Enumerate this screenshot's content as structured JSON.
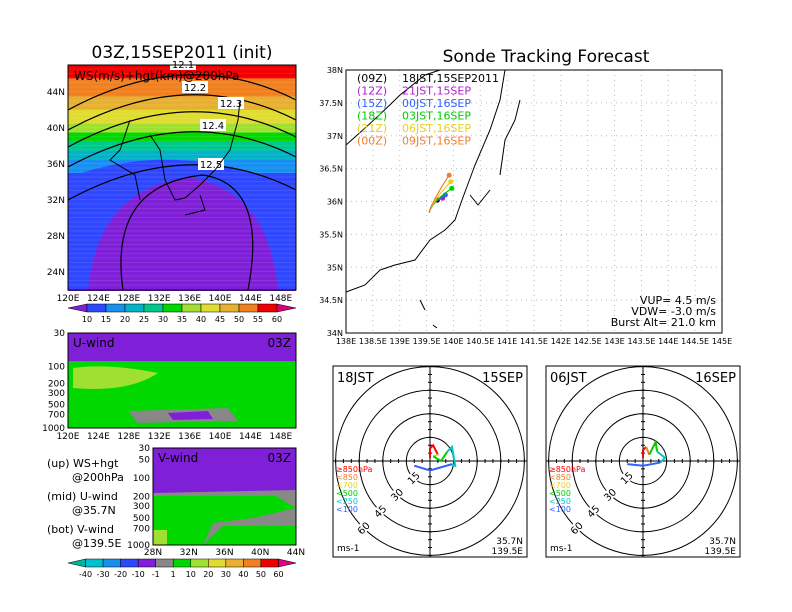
{
  "chart_data": [
    {
      "id": "ws_map",
      "type": "heatmap",
      "title": "03Z,15SEP2011 (init)",
      "overlay_label": "WS(m/s)+hgt(km)@200hPa",
      "x_ticks": [
        "120E",
        "124E",
        "128E",
        "132E",
        "136E",
        "140E",
        "144E",
        "148E"
      ],
      "y_ticks": [
        "24N",
        "28N",
        "32N",
        "36N",
        "40N",
        "44N"
      ],
      "xlim": [
        120,
        150
      ],
      "ylim": [
        22,
        47
      ],
      "contour_labels": [
        "12.1",
        "12.2",
        "12.3",
        "12.4",
        "12.5"
      ],
      "colorbar": {
        "labels": [
          "10",
          "15",
          "20",
          "25",
          "30",
          "35",
          "40",
          "45",
          "50",
          "55",
          "60"
        ],
        "colors": [
          "#7f20d8",
          "#2f48ff",
          "#1890f0",
          "#00b4c8",
          "#00c88c",
          "#00d800",
          "#a0e030",
          "#e0dc30",
          "#e8b030",
          "#f08020",
          "#f00000",
          "#e0007f"
        ]
      }
    },
    {
      "id": "u_wind",
      "type": "heatmap",
      "title": "U-wind",
      "time": "03Z",
      "y_ticks": [
        "30",
        "100",
        "200",
        "300",
        "500",
        "700",
        "1000"
      ],
      "x_ticks": [
        "120E",
        "124E",
        "128E",
        "132E",
        "136E",
        "140E",
        "144E",
        "148E"
      ]
    },
    {
      "id": "v_wind",
      "type": "heatmap",
      "title": "V-wind",
      "time": "03Z",
      "y_ticks": [
        "30",
        "50",
        "100",
        "200",
        "300",
        "500",
        "700",
        "1000"
      ],
      "x_ticks": [
        "28N",
        "32N",
        "36N",
        "40N",
        "44N"
      ],
      "colorbar": {
        "labels": [
          "-40",
          "-30",
          "-20",
          "-10",
          "-1",
          "1",
          "10",
          "20",
          "30",
          "40",
          "50",
          "60"
        ],
        "colors": [
          "#00b4a0",
          "#00c0d0",
          "#1890f0",
          "#2f48ff",
          "#7f20d8",
          "#888888",
          "#00d800",
          "#a0e030",
          "#e0dc30",
          "#e8b030",
          "#f08020",
          "#f00000",
          "#e0007f"
        ]
      }
    },
    {
      "id": "track",
      "type": "scatter",
      "title": "Sonde Tracking Forecast",
      "x_ticks": [
        "138E",
        "138.5E",
        "139E",
        "139.5E",
        "140E",
        "140.5E",
        "141E",
        "141.5E",
        "142E",
        "142.5E",
        "143E",
        "143.5E",
        "144E",
        "144.5E",
        "145E"
      ],
      "y_ticks": [
        "34N",
        "34.5N",
        "35N",
        "35.5N",
        "36N",
        "36.5N",
        "37N",
        "37.5N",
        "38N"
      ],
      "xlim": [
        138,
        145
      ],
      "ylim": [
        34,
        38
      ],
      "series": [
        {
          "utc": "(09Z)",
          "jst": "18JST,15SEP2011",
          "color": "#000000",
          "lon": 139.7,
          "lat": 36.02
        },
        {
          "utc": "(12Z)",
          "jst": "21JST,15SEP",
          "color": "#b020d0",
          "lon": 139.8,
          "lat": 36.05
        },
        {
          "utc": "(15Z)",
          "jst": "00JST,16SEP",
          "color": "#3060ff",
          "lon": 139.85,
          "lat": 36.1
        },
        {
          "utc": "(18Z)",
          "jst": "03JST,16SEP",
          "color": "#00cc00",
          "lon": 139.97,
          "lat": 36.2
        },
        {
          "utc": "(21Z)",
          "jst": "06JST,16SEP",
          "color": "#e8d020",
          "lon": 139.95,
          "lat": 36.3
        },
        {
          "utc": "(00Z)",
          "jst": "09JST,16SEP",
          "color": "#f08030",
          "lon": 139.92,
          "lat": 36.4
        }
      ],
      "params": [
        "VUP=  4.5  m/s",
        "VDW=  -3.0  m/s",
        "Burst Alt=  21.0  km"
      ]
    },
    {
      "id": "hodo1",
      "type": "line",
      "time": "18JST",
      "date": "15SEP",
      "lat": "35.7N",
      "lon": "139.5E",
      "unit": "ms-1",
      "ring_labels": [
        "15",
        "30",
        "45",
        "60"
      ],
      "legend": [
        {
          "t": "≥850hPa",
          "c": "#ff0000"
        },
        {
          "t": "<850",
          "c": "#f08030"
        },
        {
          "t": "<700",
          "c": "#e8d020"
        },
        {
          "t": "<500",
          "c": "#00cc00"
        },
        {
          "t": "<250",
          "c": "#00c8c8"
        },
        {
          "t": "<100",
          "c": "#3060ff"
        }
      ],
      "segments": [
        {
          "c": "#ff0000",
          "pts": [
            [
              0,
              2
            ],
            [
              0,
              8
            ],
            [
              2,
              10
            ],
            [
              5,
              4
            ]
          ]
        },
        {
          "c": "#e8d020",
          "pts": [
            [
              5,
              4
            ],
            [
              2,
              3
            ]
          ]
        },
        {
          "c": "#00cc00",
          "pts": [
            [
              2,
              3
            ],
            [
              7,
              0
            ],
            [
              11,
              6
            ]
          ]
        },
        {
          "c": "#00c8c8",
          "pts": [
            [
              11,
              6
            ],
            [
              14,
              9
            ],
            [
              16,
              -3
            ],
            [
              14,
              -2
            ]
          ]
        },
        {
          "c": "#3060ff",
          "pts": [
            [
              14,
              -2
            ],
            [
              0,
              -6
            ],
            [
              -10,
              -3
            ]
          ]
        }
      ]
    },
    {
      "id": "hodo2",
      "type": "line",
      "time": "06JST",
      "date": "16SEP",
      "lat": "35.7N",
      "lon": "139.5E",
      "unit": "ms-1",
      "ring_labels": [
        "15",
        "30",
        "45",
        "60"
      ],
      "legend": [
        {
          "t": "≥850hPa",
          "c": "#ff0000"
        },
        {
          "t": "<850",
          "c": "#f08030"
        },
        {
          "t": "<700",
          "c": "#e8d020"
        },
        {
          "t": "<500",
          "c": "#00cc00"
        },
        {
          "t": "<250",
          "c": "#00c8c8"
        },
        {
          "t": "<100",
          "c": "#3060ff"
        }
      ],
      "segments": [
        {
          "c": "#ff0000",
          "pts": [
            [
              0,
              2
            ],
            [
              0,
              7
            ],
            [
              2,
              9
            ]
          ]
        },
        {
          "c": "#f08030",
          "pts": [
            [
              2,
              9
            ],
            [
              4,
              4
            ]
          ]
        },
        {
          "c": "#00cc00",
          "pts": [
            [
              4,
              4
            ],
            [
              8,
              12
            ],
            [
              9,
              6
            ]
          ]
        },
        {
          "c": "#00c8c8",
          "pts": [
            [
              9,
              6
            ],
            [
              14,
              2
            ],
            [
              11,
              -1
            ]
          ]
        },
        {
          "c": "#3060ff",
          "pts": [
            [
              11,
              -1
            ],
            [
              0,
              -3
            ],
            [
              -10,
              -2
            ]
          ]
        }
      ]
    }
  ],
  "notes": [
    "(up) WS+hgt",
    "@200hPa",
    "(mid) U-wind",
    "@35.7N",
    "(bot) V-wind",
    "@139.5E"
  ]
}
